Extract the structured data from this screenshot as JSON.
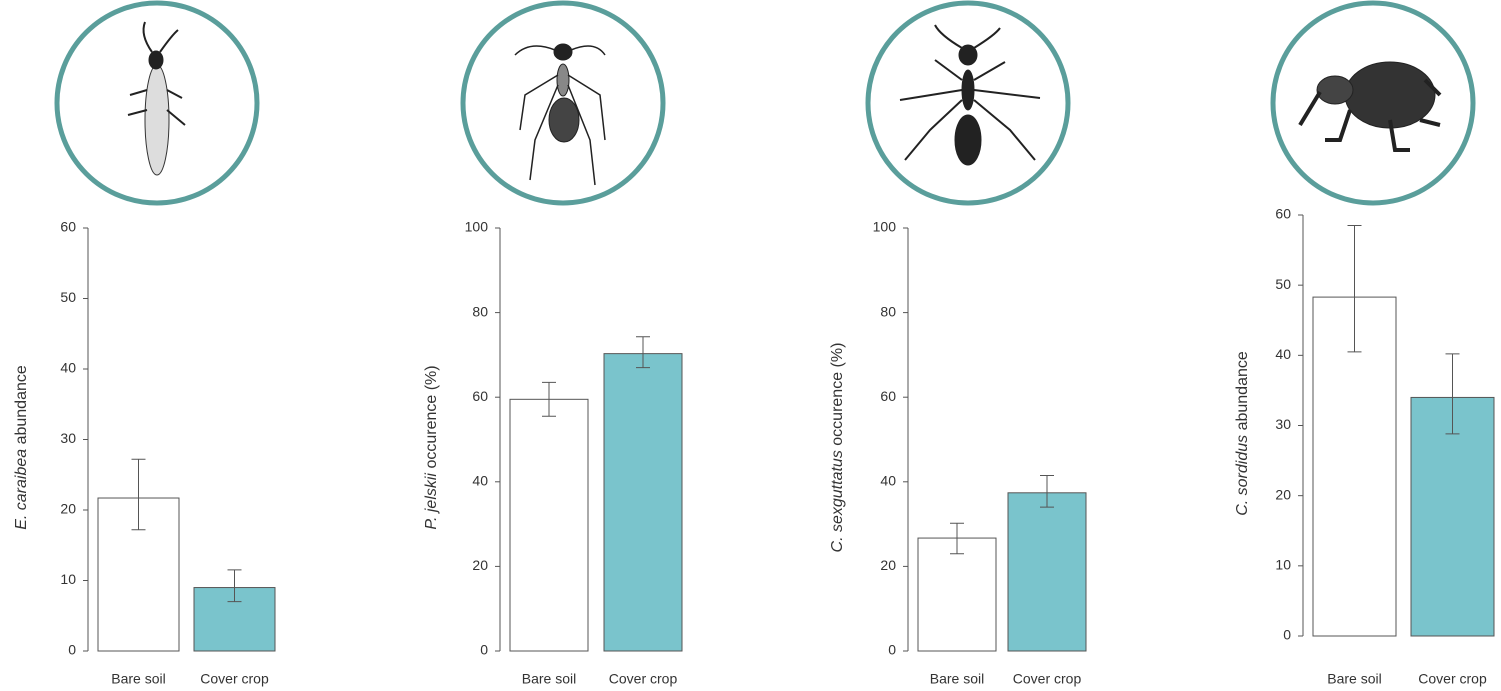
{
  "chart_data": [
    {
      "type": "bar",
      "ylabel_italic": "E. caraibea",
      "ylabel": "abundance",
      "categories": [
        "Bare soil",
        "Cover crop"
      ],
      "values": [
        21.7,
        9.0
      ],
      "lower": [
        17.2,
        7.0
      ],
      "upper": [
        27.2,
        11.5
      ],
      "colors": [
        "#ffffff",
        "#7ac4cc"
      ],
      "ylim": [
        0,
        60
      ],
      "yticks": [
        0,
        10,
        20,
        30,
        40,
        50,
        60
      ]
    },
    {
      "type": "bar",
      "ylabel_italic": "P. jelskii",
      "ylabel": "occurence  (%)",
      "categories": [
        "Bare soil",
        "Cover crop"
      ],
      "values": [
        59.5,
        70.3
      ],
      "lower": [
        55.5,
        67.0
      ],
      "upper": [
        63.5,
        74.3
      ],
      "colors": [
        "#ffffff",
        "#7ac4cc"
      ],
      "ylim": [
        0,
        100
      ],
      "yticks": [
        0,
        20,
        40,
        60,
        80,
        100
      ]
    },
    {
      "type": "bar",
      "ylabel_italic": "C. sexguttatus",
      "ylabel": "occurence  (%)",
      "categories": [
        "Bare soil",
        "Cover crop"
      ],
      "values": [
        26.7,
        37.4
      ],
      "lower": [
        23.0,
        34.0
      ],
      "upper": [
        30.2,
        41.5
      ],
      "colors": [
        "#ffffff",
        "#7ac4cc"
      ],
      "ylim": [
        0,
        100
      ],
      "yticks": [
        0,
        20,
        40,
        60,
        80,
        100
      ]
    },
    {
      "type": "bar",
      "ylabel_italic": "C. sordidus",
      "ylabel": "abundance",
      "categories": [
        "Bare soil",
        "Cover crop"
      ],
      "values": [
        48.3,
        34.0
      ],
      "lower": [
        40.5,
        28.8
      ],
      "upper": [
        58.5,
        40.2
      ],
      "colors": [
        "#ffffff",
        "#7ac4cc"
      ],
      "ylim": [
        0,
        60
      ],
      "yticks": [
        0,
        10,
        20,
        30,
        40,
        50,
        60
      ]
    }
  ]
}
